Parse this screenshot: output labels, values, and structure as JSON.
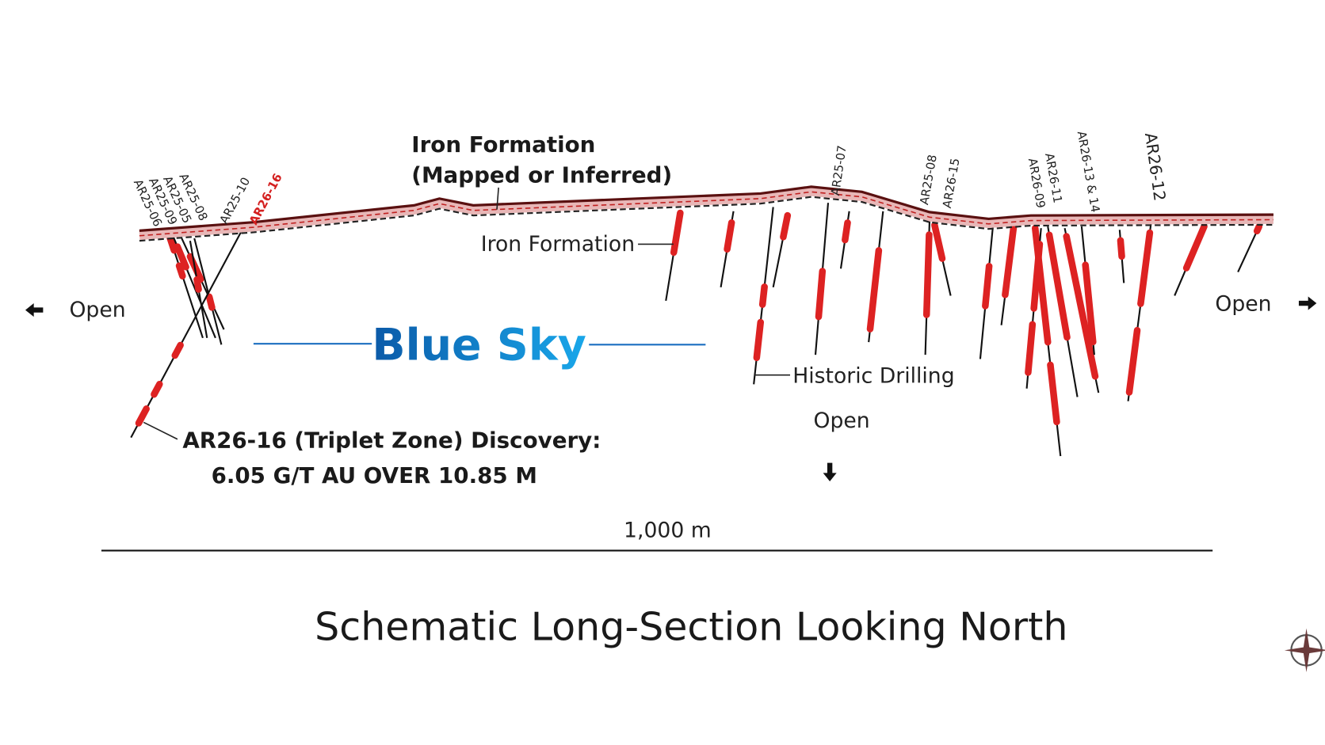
{
  "title": "Schematic Long-Section Looking North",
  "zone": "Blue Sky",
  "iron_formation_callout": [
    "Iron Formation",
    "(Mapped or Inferred)"
  ],
  "iron_formation_label": "Iron Formation",
  "historic_drilling": "Historic Drilling",
  "discovery": [
    "AR26-16 (Triplet Zone) Discovery:",
    "6.05 G/T AU OVER 10.85 M"
  ],
  "open_labels": [
    "Open",
    "Open",
    "Open"
  ],
  "scale_bar": "1,000 m",
  "drill_holes": [
    "AR25-06",
    "AR25-09",
    "AR25-05",
    "AR25-08",
    "AR25-10",
    "AR26-16",
    "AR25-07",
    "AR25-08",
    "AR26-15",
    "AR26-09",
    "AR26-11",
    "AR26-13 & 14",
    "AR26-12"
  ]
}
